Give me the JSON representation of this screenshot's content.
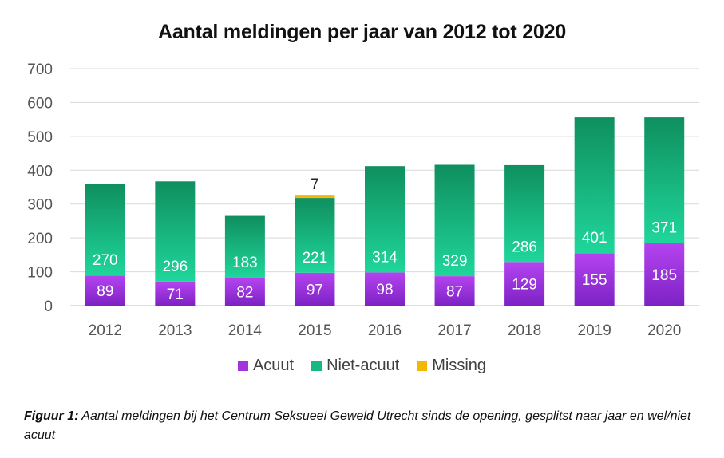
{
  "chart_data": {
    "type": "bar",
    "stacked": true,
    "title": "Aantal meldingen per jaar van 2012 tot 2020",
    "categories": [
      "2012",
      "2013",
      "2014",
      "2015",
      "2016",
      "2017",
      "2018",
      "2019",
      "2020"
    ],
    "series": [
      {
        "name": "Acuut",
        "values": [
          89,
          71,
          82,
          97,
          98,
          87,
          129,
          155,
          185
        ],
        "color": "#9b30d9"
      },
      {
        "name": "Niet-acuut",
        "values": [
          270,
          296,
          183,
          221,
          314,
          329,
          286,
          401,
          371
        ],
        "color": "#17b884"
      },
      {
        "name": "Missing",
        "values": [
          0,
          0,
          0,
          7,
          0,
          0,
          0,
          0,
          0
        ],
        "color": "#f5b800"
      }
    ],
    "yticks": [
      "0",
      "100",
      "200",
      "300",
      "400",
      "500",
      "600",
      "700"
    ],
    "ylim": [
      0,
      700
    ],
    "grid": true,
    "legend_position": "bottom"
  },
  "caption": {
    "label": "Figuur 1:",
    "text": " Aantal meldingen bij het Centrum Seksueel Geweld Utrecht sinds de opening, gesplitst naar jaar en wel/niet acuut"
  }
}
